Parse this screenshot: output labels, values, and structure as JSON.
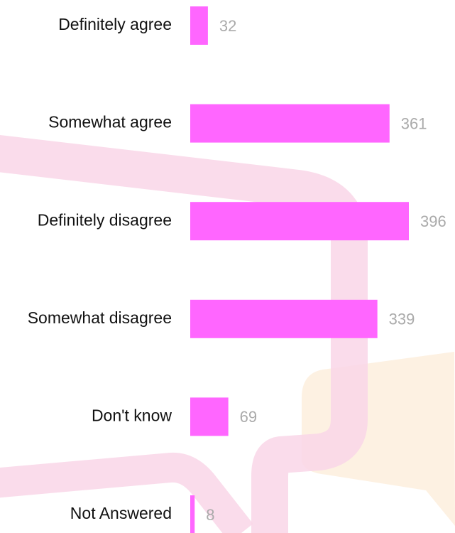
{
  "chart_data": {
    "type": "bar",
    "orientation": "horizontal",
    "categories": [
      "Definitely agree",
      "Somewhat agree",
      "Definitely disagree",
      "Somewhat disagree",
      "Don't know",
      "Not Answered"
    ],
    "values": [
      32,
      361,
      396,
      339,
      69,
      8
    ],
    "color": "#ff66ff"
  }
}
